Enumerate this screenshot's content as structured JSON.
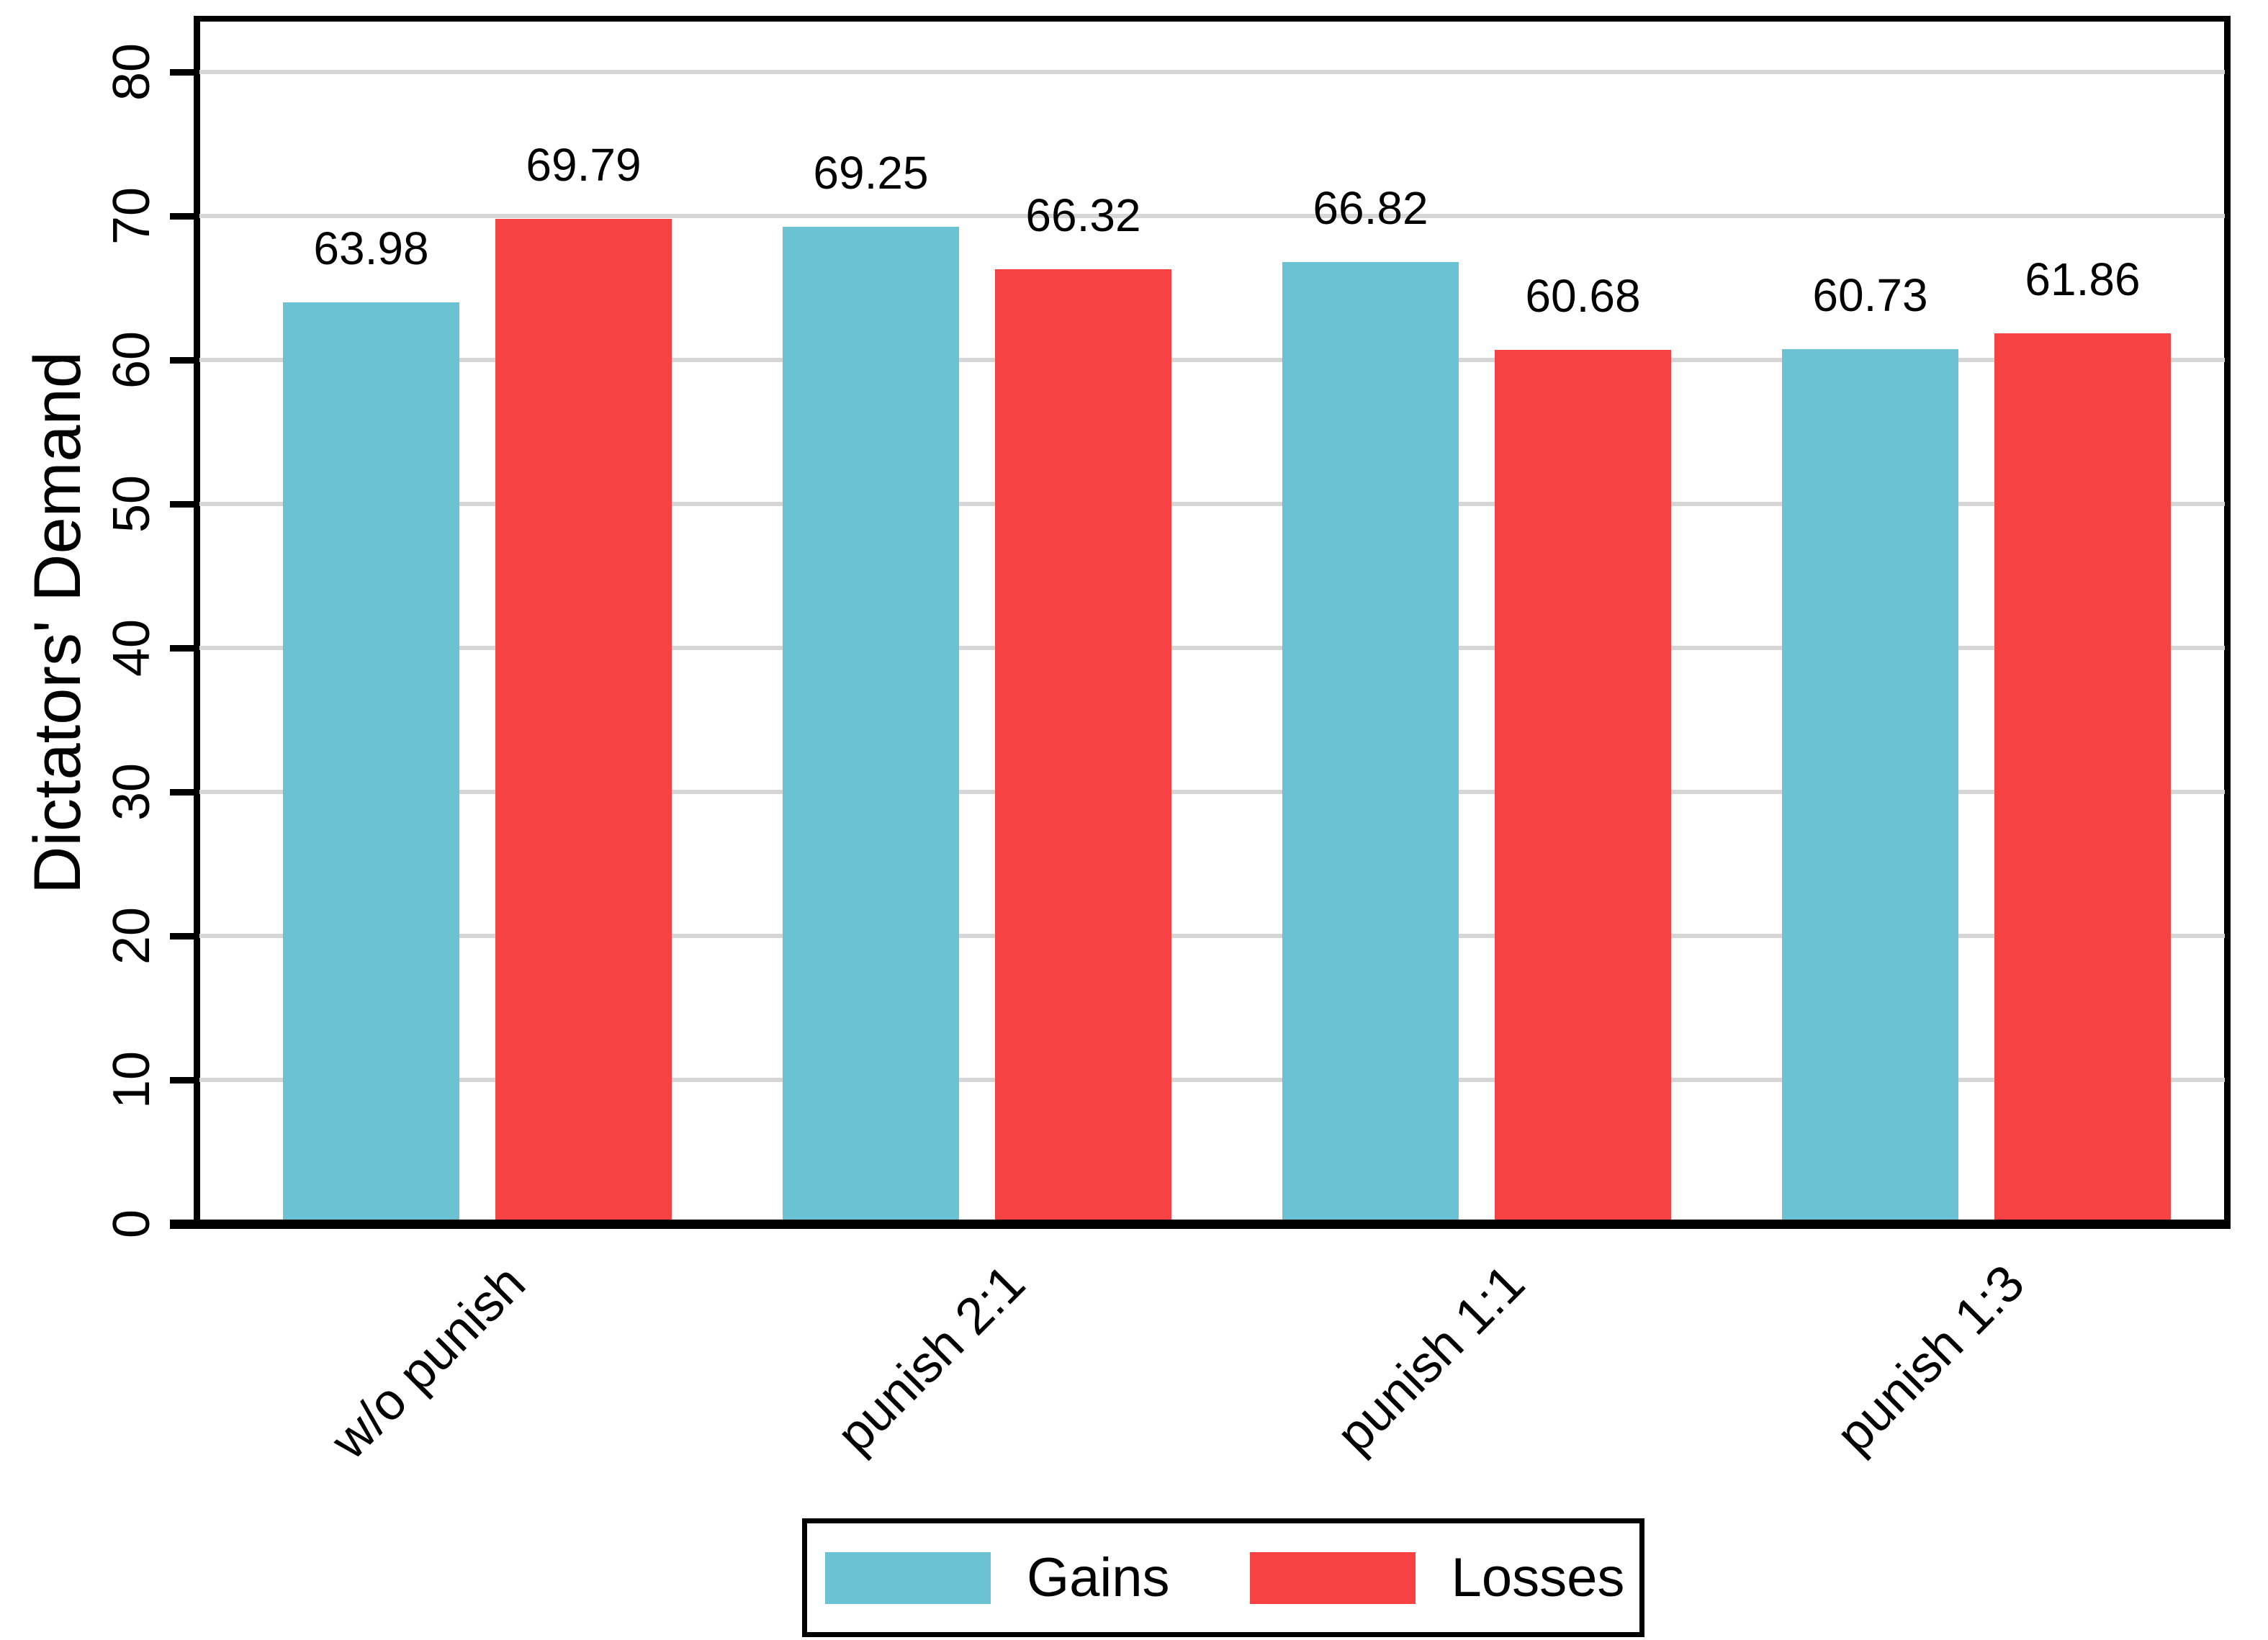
{
  "chart_data": {
    "type": "bar",
    "title": "",
    "categories": [
      "w/o punish",
      "punish 2:1",
      "punish 1:1",
      "punish 1:3"
    ],
    "series": [
      {
        "name": "Gains",
        "color": "#6AC2D3",
        "values": [
          63.98,
          69.25,
          66.82,
          60.73
        ]
      },
      {
        "name": "Losses",
        "color": "#F64242",
        "values": [
          69.79,
          66.32,
          60.68,
          61.86
        ]
      }
    ],
    "value_labels": [
      "63.98",
      "69.79",
      "69.25",
      "66.32",
      "66.82",
      "60.68",
      "60.73",
      "61.86"
    ],
    "xlabel": "",
    "ylabel": "Dictators' Demand",
    "ylim": [
      0,
      83.5
    ],
    "yticks": [
      0,
      10,
      20,
      30,
      40,
      50,
      60,
      70,
      80
    ],
    "grid": true,
    "gridline_color": "#D6D6D6",
    "axis_color": "#000000",
    "background_color": "#FFFFFF",
    "legend_position": "bottom-center",
    "bar_value_decimals": 2
  }
}
